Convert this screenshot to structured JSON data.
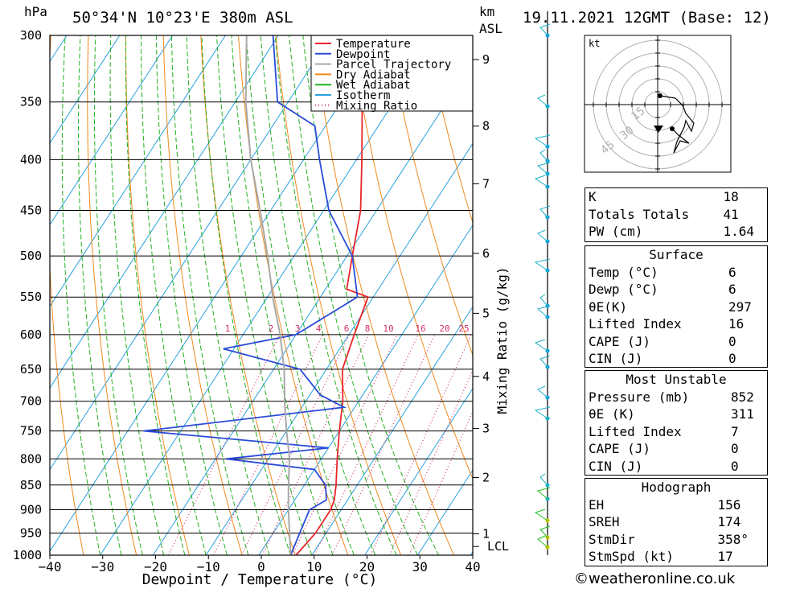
{
  "header": {
    "location": "50°34'N 10°23'E 380m ASL",
    "datetime": "19.11.2021 12GMT (Base: 12)",
    "hpa_unit": "hPa",
    "km_unit": "km",
    "asl_label": "ASL"
  },
  "skewt": {
    "pressure_levels": [
      300,
      350,
      400,
      450,
      500,
      550,
      600,
      650,
      700,
      750,
      800,
      850,
      900,
      950,
      1000
    ],
    "temp_ticks": [
      -40,
      -30,
      -20,
      -10,
      0,
      10,
      20,
      30,
      40
    ],
    "x_axis_label": "Dewpoint / Temperature (°C)",
    "mixing_axis_label": "Mixing Ratio (g/kg)",
    "km_labels": [
      {
        "label": "9"
      },
      {
        "label": "8"
      },
      {
        "label": "7"
      },
      {
        "label": "6"
      },
      {
        "label": "5"
      },
      {
        "label": "4"
      },
      {
        "label": "3"
      },
      {
        "label": "2"
      },
      {
        "label": "1"
      },
      {
        "label": "LCL"
      }
    ],
    "mixing_ratio_labels": [
      "1",
      "2",
      "3",
      "4",
      "6",
      "8",
      "10",
      "16",
      "20",
      "25"
    ],
    "legend": [
      {
        "name": "Temperature",
        "color": "#e8262a",
        "style": "solid"
      },
      {
        "name": "Dewpoint",
        "color": "#2a4bd8",
        "style": "solid"
      },
      {
        "name": "Parcel Trajectory",
        "color": "#a8a8a8",
        "style": "solid"
      },
      {
        "name": "Dry Adiabat",
        "color": "#f08a1e",
        "style": "solid"
      },
      {
        "name": "Wet Adiabat",
        "color": "#20b020",
        "style": "solid"
      },
      {
        "name": "Isotherm",
        "color": "#2aa0e0",
        "style": "solid"
      },
      {
        "name": "Mixing Ratio",
        "color": "#d0306a",
        "style": "dotted"
      }
    ]
  },
  "hodograph": {
    "unit_label": "kt",
    "ring_labels": [
      "15",
      "30",
      "45"
    ]
  },
  "indices": {
    "general": [
      {
        "label": "K",
        "value": "18"
      },
      {
        "label": "Totals Totals",
        "value": "41"
      },
      {
        "label": "PW (cm)",
        "value": "1.64"
      }
    ],
    "surface": {
      "title": "Surface",
      "rows": [
        {
          "label": "Temp (°C)",
          "value": "6"
        },
        {
          "label": "Dewp (°C)",
          "value": "6"
        },
        {
          "label": "θE(K)",
          "value": "297"
        },
        {
          "label": "Lifted Index",
          "value": "16"
        },
        {
          "label": "CAPE (J)",
          "value": "0"
        },
        {
          "label": "CIN (J)",
          "value": "0"
        }
      ]
    },
    "most_unstable": {
      "title": "Most Unstable",
      "rows": [
        {
          "label": "Pressure (mb)",
          "value": "852"
        },
        {
          "label": "θE (K)",
          "value": "311"
        },
        {
          "label": "Lifted Index",
          "value": "7"
        },
        {
          "label": "CAPE (J)",
          "value": "0"
        },
        {
          "label": "CIN (J)",
          "value": "0"
        }
      ]
    },
    "hodograph": {
      "title": "Hodograph",
      "rows": [
        {
          "label": "EH",
          "value": "156"
        },
        {
          "label": "SREH",
          "value": "174"
        },
        {
          "label": "StmDir",
          "value": "358°"
        },
        {
          "label": "StmSpd (kt)",
          "value": "17"
        }
      ]
    }
  },
  "credit": "©weatheronline.co.uk",
  "chart_data": {
    "type": "line",
    "title": "50°34'N 10°23'E 380m ASL",
    "xlabel": "Dewpoint / Temperature (°C)",
    "ylabel": "hPa",
    "x_range": [
      -40,
      40
    ],
    "y_range": [
      1000,
      300
    ],
    "y_scale": "log",
    "legend_position": "top-right",
    "series": [
      {
        "name": "Temperature",
        "color": "#e8262a",
        "points": [
          [
            1000,
            7
          ],
          [
            950,
            8
          ],
          [
            900,
            8
          ],
          [
            880,
            7.5
          ],
          [
            850,
            6
          ],
          [
            800,
            3
          ],
          [
            750,
            0
          ],
          [
            700,
            -3
          ],
          [
            650,
            -7
          ],
          [
            600,
            -9
          ],
          [
            550,
            -11
          ],
          [
            540,
            -16
          ],
          [
            500,
            -19
          ],
          [
            450,
            -23
          ],
          [
            400,
            -29
          ],
          [
            350,
            -36
          ],
          [
            300,
            -44
          ]
        ]
      },
      {
        "name": "Dewpoint",
        "color": "#2a4bd8",
        "points": [
          [
            1000,
            6
          ],
          [
            950,
            5
          ],
          [
            900,
            4
          ],
          [
            880,
            6
          ],
          [
            850,
            4
          ],
          [
            820,
            0
          ],
          [
            800,
            -18
          ],
          [
            780,
            0
          ],
          [
            750,
            -37
          ],
          [
            710,
            -2
          ],
          [
            690,
            -8
          ],
          [
            650,
            -15
          ],
          [
            620,
            -32
          ],
          [
            600,
            -20
          ],
          [
            550,
            -13
          ],
          [
            500,
            -19
          ],
          [
            450,
            -29
          ],
          [
            400,
            -37
          ],
          [
            370,
            -42
          ],
          [
            350,
            -52
          ],
          [
            300,
            -61
          ]
        ]
      },
      {
        "name": "Parcel Trajectory",
        "color": "#a8a8a8",
        "points": [
          [
            1000,
            6
          ],
          [
            900,
            0
          ],
          [
            850,
            -3
          ],
          [
            800,
            -6
          ],
          [
            750,
            -10
          ],
          [
            700,
            -14
          ],
          [
            650,
            -18
          ],
          [
            600,
            -23
          ],
          [
            550,
            -29
          ],
          [
            500,
            -35
          ],
          [
            450,
            -42
          ],
          [
            400,
            -50
          ],
          [
            350,
            -58
          ],
          [
            300,
            -66
          ]
        ]
      }
    ]
  }
}
